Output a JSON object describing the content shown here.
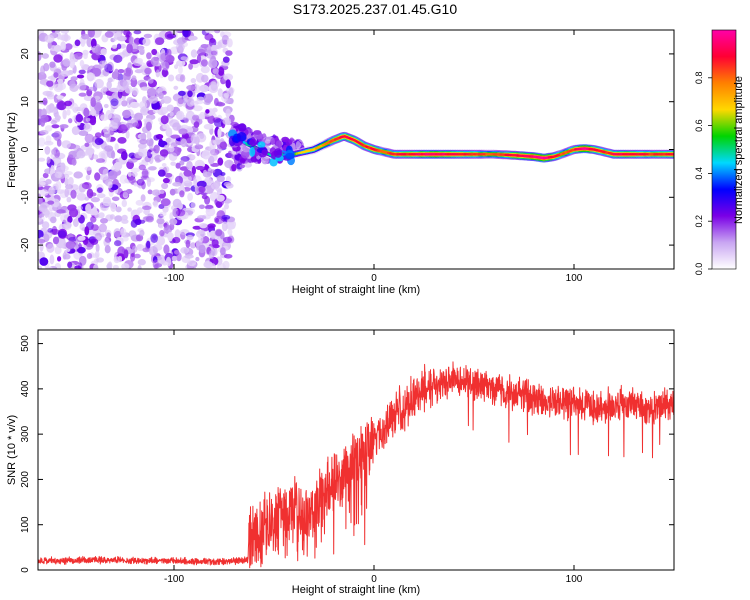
{
  "title": "S173.2025.237.01.45.G10",
  "chart_data": [
    {
      "type": "heatmap",
      "name": "spectrogram",
      "xlabel": "Height of straight line (km)",
      "ylabel": "Frequency (Hz)",
      "xlim": [
        -168,
        150
      ],
      "ylim": [
        -25,
        25
      ],
      "xticks": [
        -100,
        0,
        100
      ],
      "yticks": [
        -20,
        -10,
        0,
        10,
        20
      ],
      "noise_region_x": [
        -168,
        -71
      ],
      "signal_track": {
        "x": [
          -71,
          -65,
          -60,
          -55,
          -50,
          -45,
          -40,
          -35,
          -30,
          -25,
          -20,
          -15,
          -10,
          -5,
          0,
          5,
          10,
          20,
          30,
          40,
          50,
          60,
          70,
          80,
          85,
          90,
          95,
          100,
          105,
          110,
          115,
          120,
          130,
          140,
          150
        ],
        "freq_hz": [
          2.5,
          1.5,
          0.5,
          -0.5,
          -1.5,
          -1.5,
          -1.0,
          -0.5,
          0.0,
          1.0,
          2.0,
          2.8,
          2.0,
          0.8,
          0.0,
          -0.5,
          -1.0,
          -1.0,
          -1.0,
          -1.0,
          -1.0,
          -1.0,
          -1.2,
          -1.5,
          -1.8,
          -1.5,
          -0.8,
          0.0,
          0.2,
          0.0,
          -0.5,
          -1.0,
          -1.0,
          -1.0,
          -1.0
        ],
        "amplitude": [
          0.3,
          0.4,
          0.5,
          0.45,
          0.5,
          0.55,
          0.6,
          0.65,
          0.7,
          0.75,
          0.85,
          0.9,
          0.9,
          0.85,
          0.9,
          0.8,
          0.85,
          0.9,
          0.95,
          0.9,
          0.85,
          0.8,
          0.9,
          0.95,
          1.0,
          0.9,
          0.8,
          0.85,
          1.0,
          0.9,
          0.85,
          0.9,
          0.9,
          0.85,
          0.9
        ]
      },
      "colorbar": {
        "label": "Normalized spectral amplitude",
        "range": [
          0.0,
          1.0
        ],
        "ticks": [
          "0.0",
          "0.2",
          "0.4",
          "0.6",
          "0.8"
        ],
        "stops": [
          "#ffffff",
          "#c9a6f2",
          "#7a00e6",
          "#0000ff",
          "#00d8ff",
          "#00d400",
          "#ffd800",
          "#ff8000",
          "#ff0033",
          "#ff00a8"
        ]
      }
    },
    {
      "type": "line",
      "name": "snr",
      "xlabel": "Height of straight line (km)",
      "ylabel": "SNR (10 * v/v)",
      "xlim": [
        -168,
        150
      ],
      "ylim": [
        0,
        530
      ],
      "xticks": [
        -100,
        0,
        100
      ],
      "yticks": [
        0,
        100,
        200,
        300,
        400,
        500
      ],
      "color": "#f03030",
      "envelope": {
        "x": [
          -168,
          -140,
          -100,
          -75,
          -63,
          -62,
          -55,
          -50,
          -45,
          -40,
          -35,
          -30,
          -25,
          -20,
          -15,
          -10,
          -5,
          0,
          5,
          10,
          15,
          20,
          25,
          30,
          40,
          50,
          60,
          70,
          80,
          90,
          100,
          110,
          120,
          130,
          140,
          150
        ],
        "y": [
          20,
          22,
          20,
          18,
          22,
          70,
          90,
          110,
          130,
          140,
          120,
          130,
          170,
          190,
          200,
          240,
          260,
          280,
          310,
          340,
          360,
          380,
          400,
          410,
          420,
          410,
          400,
          390,
          380,
          370,
          370,
          360,
          365,
          360,
          360,
          365
        ]
      }
    }
  ]
}
